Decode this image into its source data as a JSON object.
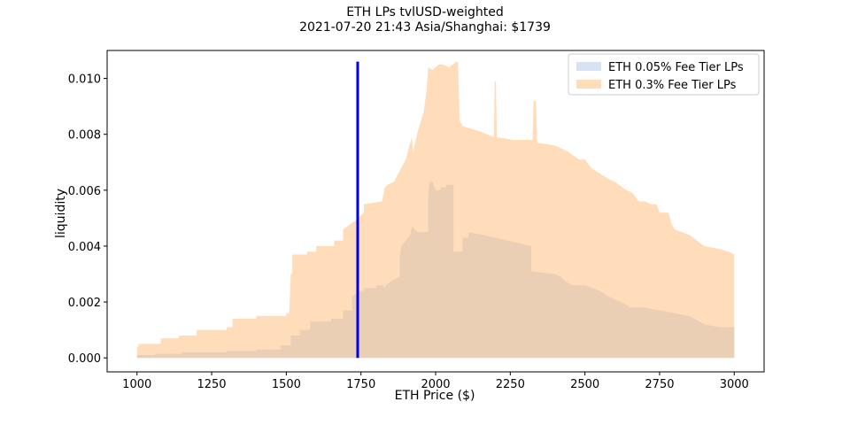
{
  "chart_data": {
    "type": "area",
    "title": "ETH LPs tvlUSD-weighted",
    "subtitle": "2021-07-20 21:43 Asia/Shanghai: $1739",
    "xlabel": "ETH Price ($)",
    "ylabel": "liquidity",
    "xlim": [
      900,
      3100
    ],
    "ylim": [
      -0.0005,
      0.011
    ],
    "xticks": [
      1000,
      1250,
      1500,
      1750,
      2000,
      2250,
      2500,
      2750,
      3000
    ],
    "xtick_labels": [
      "1000",
      "1250",
      "1500",
      "1750",
      "2000",
      "2250",
      "2500",
      "2750",
      "3000"
    ],
    "yticks": [
      0.0,
      0.002,
      0.004,
      0.006,
      0.008,
      0.01
    ],
    "ytick_labels": [
      "0.000",
      "0.002",
      "0.004",
      "0.006",
      "0.008",
      "0.010"
    ],
    "grid": false,
    "legend_position": "top-right",
    "current_price": 1739,
    "current_price_line_top": 0.0106,
    "current_price_color": "#0000ee",
    "series": [
      {
        "name": "ETH 0.05% Fee Tier LPs",
        "color": "#aec7e8",
        "opacity": 0.5,
        "points": [
          [
            1000,
            0.0001
          ],
          [
            1060,
            0.0001
          ],
          [
            1060,
            0.00015
          ],
          [
            1150,
            0.00015
          ],
          [
            1150,
            0.0002
          ],
          [
            1300,
            0.0002
          ],
          [
            1300,
            0.00025
          ],
          [
            1400,
            0.00025
          ],
          [
            1400,
            0.0003
          ],
          [
            1480,
            0.0003
          ],
          [
            1480,
            0.00045
          ],
          [
            1515,
            0.00045
          ],
          [
            1515,
            0.0008
          ],
          [
            1545,
            0.0008
          ],
          [
            1545,
            0.001
          ],
          [
            1580,
            0.001
          ],
          [
            1580,
            0.0013
          ],
          [
            1650,
            0.0013
          ],
          [
            1650,
            0.0014
          ],
          [
            1690,
            0.0014
          ],
          [
            1690,
            0.0017
          ],
          [
            1720,
            0.0017
          ],
          [
            1720,
            0.0022
          ],
          [
            1745,
            0.0024
          ],
          [
            1760,
            0.0024
          ],
          [
            1760,
            0.0025
          ],
          [
            1800,
            0.0025
          ],
          [
            1800,
            0.0026
          ],
          [
            1825,
            0.0026
          ],
          [
            1825,
            0.0025
          ],
          [
            1845,
            0.0027
          ],
          [
            1860,
            0.0028
          ],
          [
            1880,
            0.0029
          ],
          [
            1880,
            0.0036
          ],
          [
            1885,
            0.004
          ],
          [
            1900,
            0.0042
          ],
          [
            1915,
            0.0044
          ],
          [
            1920,
            0.0047
          ],
          [
            1940,
            0.0045
          ],
          [
            1975,
            0.0045
          ],
          [
            1975,
            0.0059
          ],
          [
            1980,
            0.0063
          ],
          [
            1990,
            0.0063
          ],
          [
            2000,
            0.006
          ],
          [
            2015,
            0.006
          ],
          [
            2015,
            0.0061
          ],
          [
            2035,
            0.0061
          ],
          [
            2035,
            0.0062
          ],
          [
            2060,
            0.0062
          ],
          [
            2060,
            0.0038
          ],
          [
            2090,
            0.0038
          ],
          [
            2090,
            0.0043
          ],
          [
            2110,
            0.0043
          ],
          [
            2110,
            0.0045
          ],
          [
            2160,
            0.0044
          ],
          [
            2200,
            0.0043
          ],
          [
            2280,
            0.0041
          ],
          [
            2320,
            0.004
          ],
          [
            2320,
            0.0031
          ],
          [
            2400,
            0.003
          ],
          [
            2420,
            0.0029
          ],
          [
            2440,
            0.0027
          ],
          [
            2460,
            0.0026
          ],
          [
            2500,
            0.0026
          ],
          [
            2550,
            0.0024
          ],
          [
            2580,
            0.0022
          ],
          [
            2600,
            0.0021
          ],
          [
            2640,
            0.0019
          ],
          [
            2650,
            0.0018
          ],
          [
            2700,
            0.0018
          ],
          [
            2750,
            0.0017
          ],
          [
            2800,
            0.0016
          ],
          [
            2850,
            0.0015
          ],
          [
            2900,
            0.0012
          ],
          [
            2950,
            0.0011
          ],
          [
            2970,
            0.0011
          ],
          [
            3000,
            0.0011
          ]
        ]
      },
      {
        "name": "ETH 0.3% Fee Tier LPs",
        "color": "#ffbb78",
        "opacity": 0.5,
        "points": [
          [
            1000,
            0.0004
          ],
          [
            1005,
            0.0004
          ],
          [
            1005,
            0.0005
          ],
          [
            1080,
            0.0005
          ],
          [
            1080,
            0.0007
          ],
          [
            1140,
            0.0007
          ],
          [
            1140,
            0.0008
          ],
          [
            1200,
            0.0008
          ],
          [
            1200,
            0.001
          ],
          [
            1300,
            0.001
          ],
          [
            1300,
            0.0011
          ],
          [
            1320,
            0.0011
          ],
          [
            1320,
            0.0014
          ],
          [
            1400,
            0.0014
          ],
          [
            1400,
            0.0015
          ],
          [
            1500,
            0.0015
          ],
          [
            1500,
            0.0016
          ],
          [
            1510,
            0.0016
          ],
          [
            1515,
            0.003
          ],
          [
            1520,
            0.003
          ],
          [
            1520,
            0.0037
          ],
          [
            1570,
            0.0037
          ],
          [
            1570,
            0.0038
          ],
          [
            1600,
            0.0038
          ],
          [
            1600,
            0.004
          ],
          [
            1660,
            0.004
          ],
          [
            1660,
            0.0042
          ],
          [
            1690,
            0.0042
          ],
          [
            1690,
            0.0046
          ],
          [
            1730,
            0.0049
          ],
          [
            1760,
            0.0052
          ],
          [
            1760,
            0.0055
          ],
          [
            1820,
            0.0056
          ],
          [
            1830,
            0.0061
          ],
          [
            1840,
            0.0062
          ],
          [
            1860,
            0.0063
          ],
          [
            1900,
            0.0071
          ],
          [
            1920,
            0.0079
          ],
          [
            1925,
            0.0074
          ],
          [
            1940,
            0.0081
          ],
          [
            1960,
            0.0088
          ],
          [
            1970,
            0.0096
          ],
          [
            1975,
            0.0104
          ],
          [
            1990,
            0.0103
          ],
          [
            2010,
            0.0105
          ],
          [
            2025,
            0.0105
          ],
          [
            2045,
            0.0104
          ],
          [
            2070,
            0.0106
          ],
          [
            2075,
            0.0106
          ],
          [
            2080,
            0.0085
          ],
          [
            2090,
            0.0083
          ],
          [
            2150,
            0.0081
          ],
          [
            2195,
            0.0079
          ],
          [
            2198,
            0.0099
          ],
          [
            2202,
            0.0099
          ],
          [
            2205,
            0.0079
          ],
          [
            2260,
            0.0078
          ],
          [
            2325,
            0.0078
          ],
          [
            2328,
            0.0092
          ],
          [
            2336,
            0.0092
          ],
          [
            2340,
            0.0077
          ],
          [
            2400,
            0.0076
          ],
          [
            2440,
            0.0074
          ],
          [
            2480,
            0.0071
          ],
          [
            2500,
            0.0071
          ],
          [
            2520,
            0.0068
          ],
          [
            2550,
            0.0066
          ],
          [
            2580,
            0.0064
          ],
          [
            2600,
            0.0063
          ],
          [
            2640,
            0.006
          ],
          [
            2660,
            0.0059
          ],
          [
            2680,
            0.0056
          ],
          [
            2700,
            0.0056
          ],
          [
            2720,
            0.0055
          ],
          [
            2740,
            0.0055
          ],
          [
            2750,
            0.0052
          ],
          [
            2780,
            0.0052
          ],
          [
            2790,
            0.0048
          ],
          [
            2800,
            0.0046
          ],
          [
            2850,
            0.0044
          ],
          [
            2900,
            0.004
          ],
          [
            2950,
            0.0039
          ],
          [
            2980,
            0.0038
          ],
          [
            3000,
            0.0037
          ]
        ]
      }
    ]
  }
}
